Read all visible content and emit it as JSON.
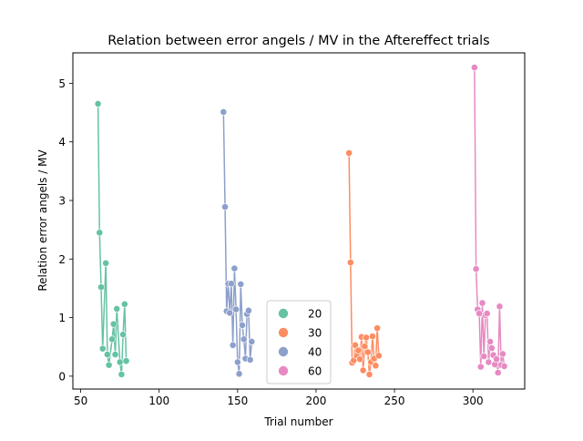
{
  "chart_data": {
    "type": "line",
    "title": "Relation between error angels / MV in the Aftereffect trials",
    "xlabel": "Trial number",
    "ylabel": "Relation error angels / MV",
    "xlim": [
      45,
      333
    ],
    "ylim": [
      -0.22,
      5.52
    ],
    "xticks": [
      50,
      100,
      150,
      200,
      250,
      300
    ],
    "yticks": [
      0,
      1,
      2,
      3,
      4,
      5
    ],
    "grid": false,
    "legend_position": "lower center",
    "series": [
      {
        "name": "20",
        "color": "#66c2a5",
        "x": [
          61,
          62,
          63,
          64,
          66,
          67,
          68,
          70,
          71,
          72,
          73,
          75,
          76,
          77,
          78,
          79
        ],
        "y": [
          4.65,
          2.45,
          1.52,
          0.47,
          1.93,
          0.37,
          0.19,
          0.63,
          0.89,
          0.37,
          1.15,
          0.24,
          0.03,
          0.71,
          1.23,
          0.26
        ]
      },
      {
        "name": "30",
        "color": "#fc8d62",
        "x": [
          221,
          222,
          223,
          224,
          225,
          226,
          227,
          228,
          229,
          230,
          231,
          232,
          233,
          234,
          235,
          236,
          237,
          238,
          239,
          240
        ],
        "y": [
          3.81,
          1.94,
          0.23,
          0.27,
          0.53,
          0.35,
          0.44,
          0.29,
          0.67,
          0.1,
          0.51,
          0.66,
          0.41,
          0.03,
          0.24,
          0.68,
          0.3,
          0.18,
          0.82,
          0.35
        ]
      },
      {
        "name": "40",
        "color": "#8da0cb",
        "x": [
          141,
          142,
          143,
          144,
          145,
          146,
          147,
          148,
          149,
          150,
          151,
          152,
          153,
          154,
          155,
          156,
          157,
          158,
          159
        ],
        "y": [
          4.51,
          2.89,
          1.11,
          1.58,
          1.08,
          1.58,
          0.53,
          1.84,
          1.14,
          0.24,
          0.04,
          1.57,
          0.87,
          0.63,
          0.3,
          1.06,
          1.12,
          0.28,
          0.59
        ]
      },
      {
        "name": "60",
        "color": "#e78ac3",
        "x": [
          301,
          302,
          303,
          304,
          305,
          306,
          307,
          308,
          309,
          310,
          311,
          312,
          313,
          314,
          315,
          316,
          317,
          318,
          319,
          320
        ],
        "y": [
          5.27,
          1.83,
          1.14,
          1.07,
          0.16,
          1.25,
          0.34,
          1.04,
          1.07,
          0.24,
          0.59,
          0.48,
          0.36,
          0.2,
          0.29,
          0.06,
          1.19,
          0.19,
          0.38,
          0.17
        ]
      }
    ]
  }
}
